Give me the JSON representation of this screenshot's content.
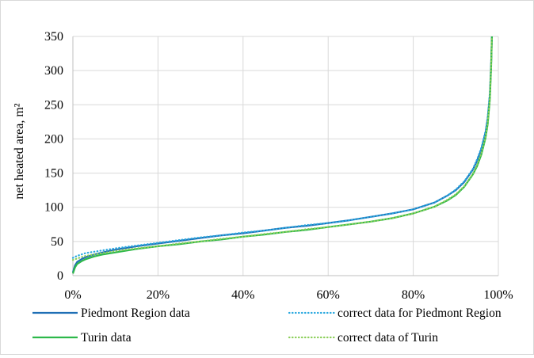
{
  "chart_data": {
    "type": "line",
    "title": "",
    "xlabel": "",
    "ylabel": "net heated area, m²",
    "xlim": [
      0,
      100
    ],
    "ylim": [
      0,
      350
    ],
    "x_ticks": [
      0,
      20,
      40,
      60,
      80,
      100
    ],
    "x_tick_labels": [
      "0%",
      "20%",
      "40%",
      "60%",
      "80%",
      "100%"
    ],
    "y_ticks": [
      0,
      50,
      100,
      150,
      200,
      250,
      300,
      350
    ],
    "y_tick_labels": [
      "0",
      "50",
      "100",
      "150",
      "200",
      "250",
      "300",
      "350"
    ],
    "grid": true,
    "legend_position": "bottom",
    "series": [
      {
        "name": "Piedmont Region data",
        "color": "#1f6fb5",
        "style": "solid",
        "x": [
          0,
          0.5,
          1,
          2,
          3,
          5,
          7,
          10,
          15,
          20,
          25,
          30,
          35,
          40,
          45,
          50,
          55,
          60,
          65,
          70,
          75,
          80,
          85,
          88,
          90,
          92,
          94,
          95,
          96,
          97,
          97.5,
          98,
          98.3,
          98.5
        ],
        "y": [
          5,
          15,
          20,
          24,
          27,
          31,
          34,
          38,
          43,
          47,
          51,
          55,
          59,
          62,
          66,
          70,
          73,
          77,
          81,
          86,
          91,
          97,
          107,
          117,
          125,
          137,
          155,
          168,
          185,
          210,
          230,
          265,
          310,
          350
        ]
      },
      {
        "name": "correct data for Piedmont Region",
        "color": "#29a8df",
        "style": "dotted",
        "x": [
          0,
          1,
          2,
          3,
          5,
          7,
          10,
          15,
          20,
          25,
          30,
          35,
          40,
          45,
          50,
          55,
          60,
          65,
          70,
          75,
          80,
          85,
          88,
          90,
          92,
          94,
          95,
          96,
          97,
          97.5,
          98,
          98.3,
          98.5
        ],
        "y": [
          26,
          29,
          31,
          33,
          35,
          37,
          40,
          44,
          48,
          52,
          56,
          59,
          63,
          66,
          70,
          74,
          77,
          81,
          86,
          91,
          97,
          107,
          117,
          126,
          138,
          156,
          170,
          187,
          212,
          233,
          268,
          312,
          350
        ]
      },
      {
        "name": "Turin data",
        "color": "#2db84a",
        "style": "solid",
        "x": [
          0,
          0.5,
          1,
          2,
          3,
          5,
          7,
          10,
          15,
          20,
          25,
          30,
          35,
          40,
          45,
          50,
          55,
          60,
          65,
          70,
          75,
          80,
          85,
          88,
          90,
          92,
          94,
          95,
          96,
          97,
          97.5,
          98,
          98.3,
          98.5
        ],
        "y": [
          3,
          12,
          17,
          21,
          24,
          28,
          31,
          34,
          39,
          43,
          46,
          50,
          53,
          57,
          60,
          64,
          67,
          71,
          75,
          79,
          84,
          91,
          101,
          110,
          118,
          130,
          148,
          160,
          177,
          202,
          222,
          258,
          305,
          350
        ]
      },
      {
        "name": "correct data of Turin",
        "color": "#8ccf5a",
        "style": "dotted",
        "x": [
          0,
          1,
          2,
          3,
          5,
          7,
          10,
          15,
          20,
          25,
          30,
          35,
          40,
          45,
          50,
          55,
          60,
          65,
          70,
          75,
          80,
          85,
          88,
          90,
          92,
          94,
          95,
          96,
          97,
          97.5,
          98,
          98.3,
          98.5
        ],
        "y": [
          23,
          25,
          27,
          29,
          31,
          33,
          36,
          40,
          43,
          47,
          50,
          54,
          57,
          61,
          64,
          68,
          71,
          75,
          79,
          84,
          91,
          101,
          111,
          119,
          131,
          149,
          162,
          179,
          204,
          224,
          260,
          306,
          350
        ]
      }
    ]
  }
}
